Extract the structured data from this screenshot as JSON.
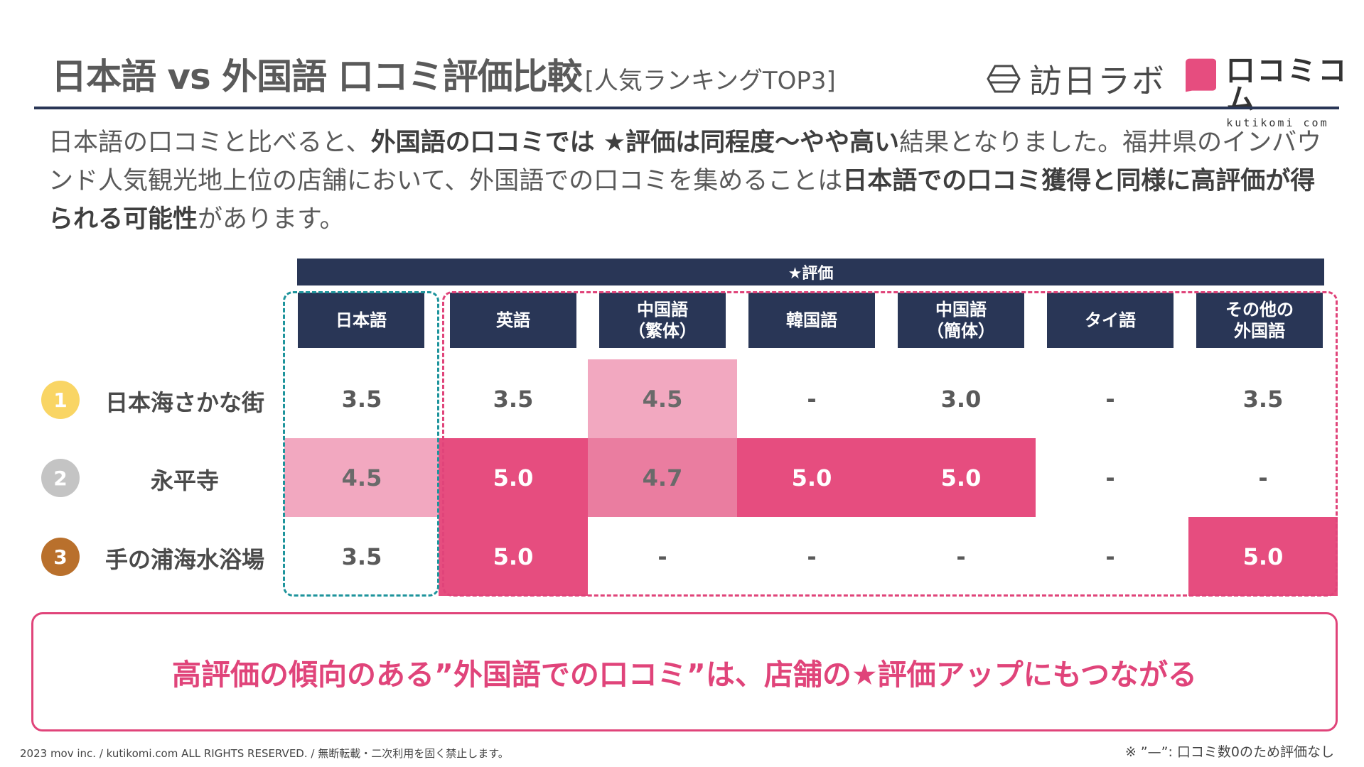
{
  "title": {
    "main": "日本語 vs 外国語 口コミ評価比較",
    "sub": "[人気ランキングTOP3]"
  },
  "logos": {
    "houjitsu": "訪日ラボ",
    "kutikomi": {
      "name": "口コミコム",
      "sub": "kutikomi com"
    }
  },
  "intro": {
    "p1": "日本語の口コミと比べると、",
    "b1": "外国語の口コミでは ★評価は同程度〜やや高い",
    "p2": "結果となりました。福井県のインバウンド人気観光地上位の店舗において、外国語での口コミを集めることは",
    "b2": "日本語での口コミ獲得と同様に高評価が得られる可能性",
    "p3": "があります。"
  },
  "table": {
    "eval_header": "★評価",
    "columns": [
      "日本語",
      "英語",
      "中国語\n（繁体）",
      "韓国語",
      "中国語\n（簡体）",
      "タイ語",
      "その他の\n外国語"
    ],
    "rows": [
      {
        "rank": "1",
        "rank_color": "#f9d564",
        "place": "日本海さかな街",
        "values": [
          "3.5",
          "3.5",
          "4.5",
          "-",
          "3.0",
          "-",
          "3.5"
        ],
        "levels": [
          "none",
          "none",
          "light",
          "none",
          "none",
          "none",
          "none"
        ]
      },
      {
        "rank": "2",
        "rank_color": "#c4c4c4",
        "place": "永平寺",
        "values": [
          "4.5",
          "5.0",
          "4.7",
          "5.0",
          "5.0",
          "-",
          "-"
        ],
        "levels": [
          "light",
          "strong",
          "mid",
          "strong",
          "strong",
          "none",
          "none"
        ]
      },
      {
        "rank": "3",
        "rank_color": "#b9702c",
        "place": "手の浦海水浴場",
        "values": [
          "3.5",
          "5.0",
          "-",
          "-",
          "-",
          "-",
          "5.0"
        ],
        "levels": [
          "none",
          "strong",
          "none",
          "none",
          "none",
          "none",
          "strong"
        ]
      }
    ]
  },
  "callout": "高評価の傾向のある”外国語での口コミ”は、店舗の★評価アップにもつながる",
  "footer": "2023 mov inc. / kutikomi.com ALL RIGHTS RESERVED. / 無断転載・二次利用を固く禁止します。",
  "note": "※ ”—”: 口コミ数0のため評価なし",
  "colors": {
    "navy": "#293656",
    "pink_strong": "#e64d7f",
    "pink_mid": "#ea7da0",
    "pink_light": "#f2a8c0",
    "teal": "#1e949c"
  }
}
